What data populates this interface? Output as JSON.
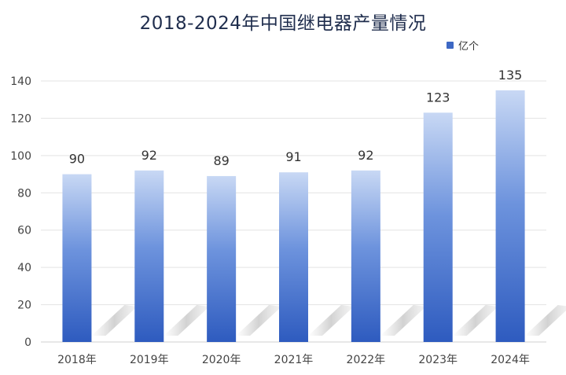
{
  "chart_data": {
    "type": "bar",
    "title": "2018-2024年中国继电器产量情况",
    "categories": [
      "2018年",
      "2019年",
      "2020年",
      "2021年",
      "2022年",
      "2023年",
      "2024年"
    ],
    "series": [
      {
        "name": "亿个",
        "values": [
          90,
          92,
          89,
          91,
          92,
          123,
          135
        ]
      }
    ],
    "data_labels": [
      "90",
      "92",
      "89",
      "91",
      "92",
      "123",
      "135"
    ],
    "y_ticks": [
      "0",
      "20",
      "40",
      "60",
      "80",
      "100",
      "120",
      "140"
    ],
    "ylim": [
      0,
      140
    ],
    "grid": true,
    "legend_position": "top-right",
    "colors": {
      "bar_bottom": "#2e5bbf",
      "bar_top": "#c8d8f4",
      "legend": "#3d68c4",
      "grid": "#e3e3e3"
    }
  }
}
